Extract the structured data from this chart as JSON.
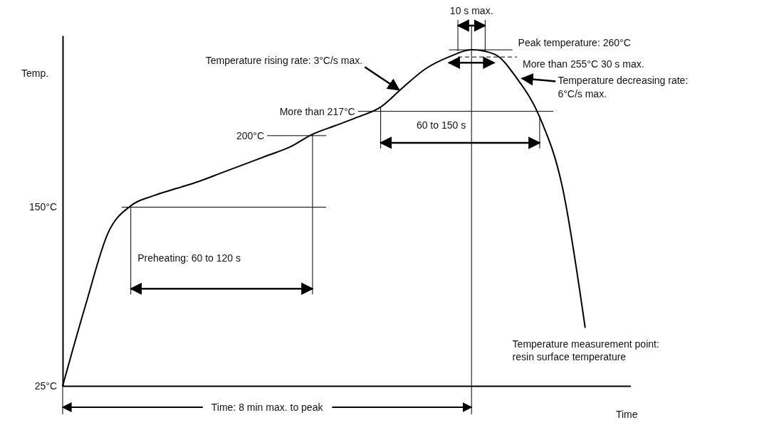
{
  "chart_data": {
    "type": "line",
    "xlabel": "Time",
    "ylabel": "Temp.",
    "categories": [
      null,
      null,
      null,
      null,
      null,
      null,
      null,
      null,
      null,
      null,
      null,
      null,
      null,
      null,
      null,
      null,
      null,
      null,
      null,
      null,
      null,
      null,
      null,
      null,
      null,
      null
    ],
    "series": [
      {
        "color": "#000000",
        "values": [
          25,
          81,
          132,
          151,
          158,
          163,
          168,
          174,
          180,
          186,
          192,
          201,
          207,
          213,
          220,
          234,
          247,
          255,
          260,
          257,
          240,
          213,
          164,
          66,
          null,
          null
        ]
      }
    ],
    "ylim": [
      25,
      270
    ],
    "yticks": [
      {
        "value": 25,
        "label": "25°C"
      },
      {
        "value": 150,
        "label": "150°C"
      }
    ],
    "tick_labels": "y",
    "marker": "none",
    "line_style": "solid",
    "grid": false,
    "ref_lines": [
      {
        "axis": "y",
        "value": 150,
        "color": "#000000"
      },
      {
        "axis": "y",
        "value": 200,
        "label": "200°C",
        "color": "#000000"
      },
      {
        "axis": "y",
        "value": 217,
        "label": "More than 217°C",
        "color": "#000000"
      },
      {
        "axis": "y",
        "value": 260,
        "label": "Peak temperature: 260°C",
        "color": "#000000"
      },
      {
        "axis": "y",
        "value": 255,
        "label": "More than 255°C   30 s max.",
        "color": "#000000",
        "line_style": "dashed"
      }
    ],
    "annotations": [
      "10 s max.",
      "Temperature rising rate: 3°C/s max.",
      "Temperature decreasing rate: 6°C/s max.",
      "60 to 150 s",
      "Preheating: 60 to 120 s",
      "Temperature measurement point: resin surface temperature",
      "Time: 8 min max. to peak"
    ]
  }
}
